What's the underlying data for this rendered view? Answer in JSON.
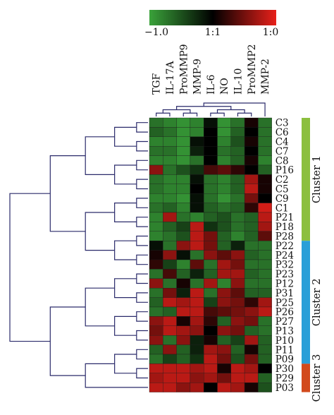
{
  "chart_data": {
    "type": "heatmap",
    "legend": {
      "min_label": "−1.0",
      "mid_label": "1:1",
      "max_label": "1:0",
      "low_color": "#3aa23a",
      "mid_color": "#000000",
      "high_color": "#e8201a"
    },
    "columns": [
      "TGF",
      "IL-17A",
      "ProMMP9",
      "MMP-9",
      "IL-6",
      "NO",
      "IL-10",
      "ProMMP2",
      "MMP-2"
    ],
    "rows": [
      "C3",
      "C6",
      "C4",
      "C7",
      "C8",
      "P16",
      "C2",
      "C5",
      "C9",
      "C1",
      "P21",
      "P18",
      "P28",
      "P22",
      "P24",
      "P32",
      "P23",
      "P12",
      "P31",
      "P25",
      "P26",
      "P27",
      "P13",
      "P10",
      "P11",
      "P09",
      "P30",
      "P29",
      "P03"
    ],
    "values": [
      [
        -0.7,
        -0.8,
        -0.9,
        -0.8,
        -0.1,
        -0.9,
        -0.7,
        0.1,
        -0.7
      ],
      [
        -0.6,
        -0.7,
        -0.9,
        -0.8,
        0.0,
        -0.9,
        -0.6,
        0.0,
        -0.7
      ],
      [
        -0.8,
        -0.8,
        -0.9,
        -0.1,
        0.0,
        -0.8,
        -0.5,
        0.1,
        -0.7
      ],
      [
        -0.7,
        -0.7,
        -0.9,
        -0.2,
        0.0,
        -0.7,
        -0.6,
        0.0,
        -0.7
      ],
      [
        -0.8,
        -0.8,
        -0.9,
        -0.7,
        0.0,
        -0.8,
        -0.6,
        0.1,
        -0.8
      ],
      [
        0.6,
        -0.7,
        -0.5,
        -0.3,
        0.3,
        0.4,
        0.2,
        0.0,
        -0.6
      ],
      [
        -0.7,
        -0.8,
        -0.8,
        -0.1,
        -0.7,
        -0.8,
        -0.6,
        0.7,
        0.1
      ],
      [
        -0.7,
        -0.8,
        -0.8,
        0.0,
        -0.7,
        -0.8,
        -0.6,
        0.8,
        0.1
      ],
      [
        -0.8,
        -0.8,
        -0.9,
        -0.1,
        -0.7,
        -0.9,
        -0.7,
        0.5,
        0.0
      ],
      [
        -0.7,
        -0.6,
        -0.8,
        -0.1,
        -0.6,
        -0.7,
        -0.6,
        0.2,
        0.9
      ],
      [
        -0.8,
        0.7,
        -0.7,
        -0.8,
        -0.6,
        -0.5,
        -0.7,
        -0.6,
        0.8
      ],
      [
        -0.8,
        -0.6,
        -0.4,
        0.8,
        -0.3,
        -0.5,
        -0.7,
        -0.6,
        0.7
      ],
      [
        -0.8,
        -0.7,
        -0.5,
        0.8,
        0.5,
        -0.6,
        -0.8,
        -0.6,
        0.4
      ],
      [
        -0.1,
        -0.7,
        0.6,
        0.8,
        0.5,
        -0.6,
        -0.2,
        -0.7,
        -0.7
      ],
      [
        0.1,
        0.6,
        -0.1,
        -0.7,
        0.6,
        0.4,
        0.6,
        -0.6,
        -0.7
      ],
      [
        0.2,
        -0.4,
        -0.8,
        0.4,
        -0.7,
        0.7,
        0.5,
        -0.7,
        -0.7
      ],
      [
        -0.7,
        0.3,
        -0.6,
        -0.2,
        -0.6,
        0.7,
        0.7,
        -0.6,
        -0.7
      ],
      [
        0.6,
        -0.7,
        0.1,
        -0.7,
        0.7,
        -0.8,
        0.6,
        -0.7,
        -0.7
      ],
      [
        -0.7,
        0.5,
        -0.2,
        0.8,
        -0.7,
        0.6,
        0.4,
        -0.6,
        -0.6
      ],
      [
        -0.6,
        0.8,
        0.7,
        0.8,
        -0.4,
        0.6,
        0.5,
        0.2,
        0.7
      ],
      [
        -0.7,
        -0.6,
        0.8,
        0.8,
        0.3,
        0.4,
        0.5,
        0.6,
        0.8
      ],
      [
        0.6,
        0.8,
        0.1,
        0.7,
        0.2,
        -0.6,
        0.6,
        0.5,
        -0.7
      ],
      [
        0.5,
        0.8,
        0.7,
        0.6,
        0.0,
        0.6,
        0.5,
        -0.6,
        -0.7
      ],
      [
        0.6,
        -0.7,
        0.6,
        -0.2,
        0.1,
        -0.6,
        -0.4,
        0.7,
        -0.6
      ],
      [
        -0.6,
        0.6,
        -0.6,
        -0.2,
        0.7,
        0.6,
        -0.6,
        0.1,
        -0.6
      ],
      [
        -0.7,
        -0.4,
        -0.6,
        -0.3,
        0.8,
        0.5,
        -0.5,
        0.5,
        -0.6
      ],
      [
        0.8,
        0.8,
        0.8,
        0.7,
        0.8,
        0.1,
        0.8,
        0.7,
        0.0
      ],
      [
        0.7,
        0.8,
        0.8,
        0.6,
        0.7,
        0.5,
        0.8,
        0.8,
        -0.6
      ],
      [
        0.8,
        0.8,
        0.6,
        0.7,
        0.0,
        0.8,
        0.7,
        0.1,
        -0.5
      ]
    ],
    "clusters": [
      {
        "label": "Cluster 1",
        "first_row": "C3",
        "last_row": "P28",
        "color": "#8cbf3f"
      },
      {
        "label": "Cluster 2",
        "first_row": "P22",
        "last_row": "P09",
        "color": "#2a9fd8"
      },
      {
        "label": "Cluster 3",
        "first_row": "P30",
        "last_row": "P03",
        "color": "#d24a1c"
      }
    ],
    "row_dendrogram": true,
    "column_dendrogram": true
  }
}
